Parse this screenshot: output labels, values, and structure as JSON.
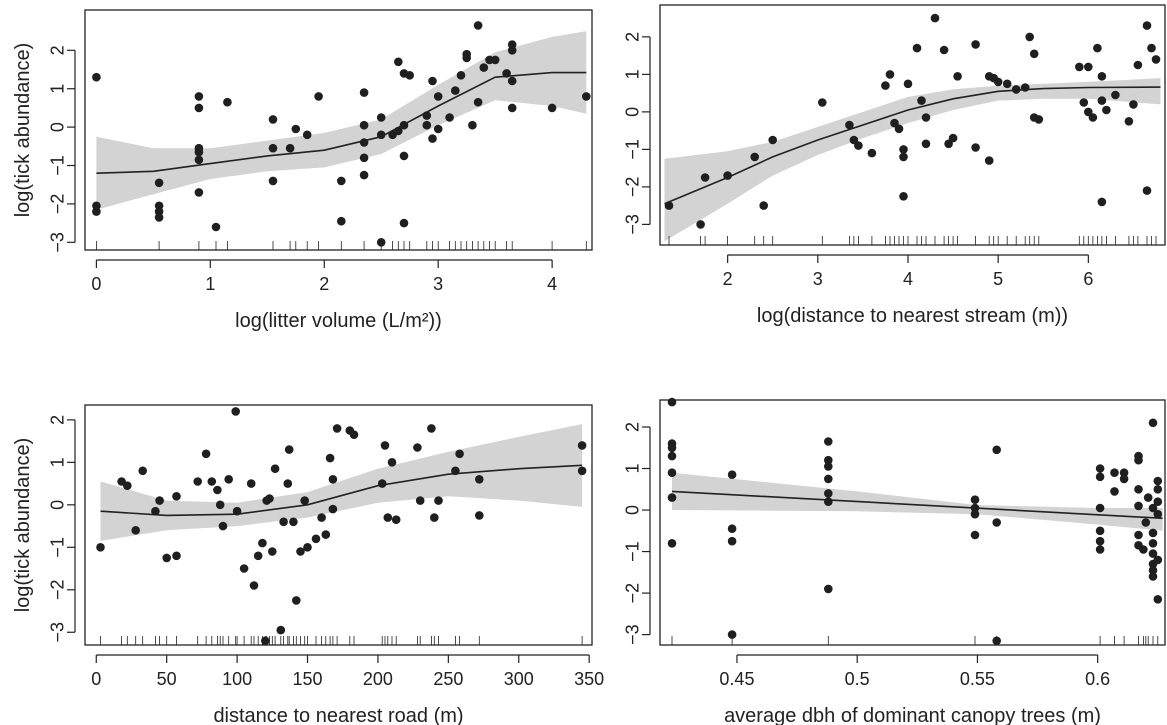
{
  "colors": {
    "band": "#d3d3d3",
    "point": "#1f1f1f",
    "line": "#222222"
  },
  "chart_data": [
    {
      "type": "scatter",
      "xlabel": "log(litter volume (L/m²))",
      "ylabel": "log(tick abundance)",
      "xlim": [
        -0.1,
        4.35
      ],
      "ylim": [
        -3.2,
        3.05
      ],
      "xticks": [
        0,
        1,
        2,
        3,
        4
      ],
      "yticks": [
        -3,
        -2,
        -1,
        0,
        1,
        2
      ],
      "points": [
        [
          0,
          1.3
        ],
        [
          0,
          -2.05
        ],
        [
          0,
          -2.2
        ],
        [
          0.55,
          -1.45
        ],
        [
          0.55,
          -2.05
        ],
        [
          0.55,
          -2.2
        ],
        [
          0.55,
          -2.35
        ],
        [
          0.9,
          0.8
        ],
        [
          0.9,
          0.5
        ],
        [
          0.9,
          -0.55
        ],
        [
          0.9,
          -0.65
        ],
        [
          0.9,
          -0.85
        ],
        [
          0.9,
          -1.7
        ],
        [
          1.05,
          -2.6
        ],
        [
          1.15,
          0.65
        ],
        [
          1.55,
          0.2
        ],
        [
          1.55,
          -0.55
        ],
        [
          1.55,
          -1.4
        ],
        [
          1.7,
          -0.55
        ],
        [
          1.75,
          -0.05
        ],
        [
          1.85,
          -0.2
        ],
        [
          1.95,
          0.8
        ],
        [
          2.15,
          -1.4
        ],
        [
          2.15,
          -2.45
        ],
        [
          2.35,
          0.9
        ],
        [
          2.35,
          0.05
        ],
        [
          2.35,
          -0.4
        ],
        [
          2.35,
          -0.8
        ],
        [
          2.35,
          -1.25
        ],
        [
          2.5,
          0.25
        ],
        [
          2.5,
          -0.2
        ],
        [
          2.5,
          -3.0
        ],
        [
          2.6,
          -0.2
        ],
        [
          2.65,
          -0.1
        ],
        [
          2.65,
          1.7
        ],
        [
          2.7,
          1.4
        ],
        [
          2.7,
          0.05
        ],
        [
          2.7,
          -0.75
        ],
        [
          2.7,
          -2.5
        ],
        [
          2.75,
          1.35
        ],
        [
          2.9,
          0.3
        ],
        [
          2.9,
          0.05
        ],
        [
          2.95,
          1.2
        ],
        [
          2.95,
          -0.3
        ],
        [
          3.0,
          0.8
        ],
        [
          3.0,
          -0.05
        ],
        [
          3.1,
          0.25
        ],
        [
          3.15,
          0.95
        ],
        [
          3.2,
          1.35
        ],
        [
          3.25,
          1.8
        ],
        [
          3.25,
          1.9
        ],
        [
          3.3,
          0.05
        ],
        [
          3.35,
          2.65
        ],
        [
          3.35,
          0.65
        ],
        [
          3.4,
          1.55
        ],
        [
          3.45,
          1.75
        ],
        [
          3.5,
          1.75
        ],
        [
          3.6,
          1.4
        ],
        [
          3.65,
          2.0
        ],
        [
          3.65,
          2.15
        ],
        [
          3.65,
          1.2
        ],
        [
          3.65,
          0.5
        ],
        [
          4.0,
          0.5
        ],
        [
          4.3,
          0.8
        ]
      ],
      "fit": [
        [
          0,
          -1.2
        ],
        [
          0.5,
          -1.15
        ],
        [
          1.0,
          -0.95
        ],
        [
          1.5,
          -0.75
        ],
        [
          2.0,
          -0.6
        ],
        [
          2.5,
          -0.25
        ],
        [
          3.0,
          0.55
        ],
        [
          3.5,
          1.3
        ],
        [
          4.0,
          1.42
        ],
        [
          4.3,
          1.42
        ]
      ],
      "band_upper": [
        [
          0,
          -0.25
        ],
        [
          0.5,
          -0.55
        ],
        [
          1.0,
          -0.55
        ],
        [
          1.5,
          -0.35
        ],
        [
          2.0,
          -0.15
        ],
        [
          2.5,
          0.2
        ],
        [
          3.0,
          1.1
        ],
        [
          3.5,
          1.95
        ],
        [
          4.0,
          2.35
        ],
        [
          4.3,
          2.5
        ]
      ],
      "band_lower": [
        [
          0,
          -2.15
        ],
        [
          0.5,
          -1.75
        ],
        [
          1.0,
          -1.35
        ],
        [
          1.5,
          -1.15
        ],
        [
          2.0,
          -1.05
        ],
        [
          2.5,
          -0.7
        ],
        [
          3.0,
          0.05
        ],
        [
          3.5,
          0.7
        ],
        [
          4.0,
          0.55
        ],
        [
          4.3,
          0.35
        ]
      ]
    },
    {
      "type": "scatter",
      "xlabel": "log(distance to nearest stream (m))",
      "ylabel": "",
      "xlim": [
        1.25,
        6.85
      ],
      "ylim": [
        -3.55,
        2.85
      ],
      "xticks": [
        2,
        3,
        4,
        5,
        6
      ],
      "yticks": [
        -3,
        -2,
        -1,
        0,
        1,
        2
      ],
      "points": [
        [
          1.35,
          -2.5
        ],
        [
          1.7,
          -3.0
        ],
        [
          1.75,
          -1.75
        ],
        [
          2.0,
          -1.7
        ],
        [
          2.3,
          -1.2
        ],
        [
          2.4,
          -2.5
        ],
        [
          2.5,
          -0.75
        ],
        [
          3.05,
          0.25
        ],
        [
          3.35,
          -0.35
        ],
        [
          3.4,
          -0.75
        ],
        [
          3.45,
          -0.9
        ],
        [
          3.6,
          -1.1
        ],
        [
          3.75,
          0.7
        ],
        [
          3.8,
          1.0
        ],
        [
          3.85,
          -0.3
        ],
        [
          3.9,
          -0.45
        ],
        [
          3.95,
          -1.0
        ],
        [
          3.95,
          -1.2
        ],
        [
          3.95,
          -2.25
        ],
        [
          4.0,
          0.75
        ],
        [
          4.1,
          1.7
        ],
        [
          4.15,
          0.3
        ],
        [
          4.2,
          -0.15
        ],
        [
          4.2,
          -0.85
        ],
        [
          4.3,
          2.5
        ],
        [
          4.4,
          1.65
        ],
        [
          4.45,
          -0.85
        ],
        [
          4.5,
          -0.7
        ],
        [
          4.55,
          0.95
        ],
        [
          4.75,
          1.8
        ],
        [
          4.75,
          -0.95
        ],
        [
          4.9,
          0.95
        ],
        [
          4.9,
          -1.3
        ],
        [
          4.95,
          0.9
        ],
        [
          5.0,
          0.8
        ],
        [
          5.1,
          0.75
        ],
        [
          5.2,
          0.6
        ],
        [
          5.3,
          0.65
        ],
        [
          5.35,
          2.0
        ],
        [
          5.4,
          1.55
        ],
        [
          5.4,
          -0.15
        ],
        [
          5.45,
          -0.2
        ],
        [
          5.9,
          1.2
        ],
        [
          5.95,
          0.25
        ],
        [
          6.0,
          1.2
        ],
        [
          6.0,
          0.0
        ],
        [
          6.05,
          -0.15
        ],
        [
          6.1,
          1.7
        ],
        [
          6.15,
          0.95
        ],
        [
          6.15,
          0.3
        ],
        [
          6.15,
          -2.4
        ],
        [
          6.2,
          0.05
        ],
        [
          6.3,
          0.45
        ],
        [
          6.45,
          -0.25
        ],
        [
          6.5,
          0.2
        ],
        [
          6.55,
          1.25
        ],
        [
          6.65,
          2.3
        ],
        [
          6.65,
          -2.1
        ],
        [
          6.7,
          1.7
        ],
        [
          6.75,
          1.4
        ]
      ],
      "fit": [
        [
          1.3,
          -2.45
        ],
        [
          2.0,
          -1.75
        ],
        [
          2.5,
          -1.2
        ],
        [
          3.0,
          -0.75
        ],
        [
          3.5,
          -0.35
        ],
        [
          4.0,
          0.05
        ],
        [
          4.5,
          0.35
        ],
        [
          5.0,
          0.55
        ],
        [
          5.5,
          0.62
        ],
        [
          6.0,
          0.65
        ],
        [
          6.8,
          0.66
        ]
      ],
      "band_upper": [
        [
          1.3,
          -1.25
        ],
        [
          2.0,
          -1.05
        ],
        [
          2.5,
          -0.8
        ],
        [
          3.0,
          -0.4
        ],
        [
          3.5,
          0.0
        ],
        [
          4.0,
          0.4
        ],
        [
          4.5,
          0.6
        ],
        [
          5.0,
          0.7
        ],
        [
          5.5,
          0.75
        ],
        [
          6.0,
          0.8
        ],
        [
          6.8,
          0.9
        ]
      ],
      "band_lower": [
        [
          1.3,
          -3.45
        ],
        [
          2.0,
          -2.45
        ],
        [
          2.5,
          -1.7
        ],
        [
          3.0,
          -1.15
        ],
        [
          3.5,
          -0.7
        ],
        [
          4.0,
          -0.3
        ],
        [
          4.5,
          0.05
        ],
        [
          5.0,
          0.3
        ],
        [
          5.5,
          0.35
        ],
        [
          6.0,
          0.35
        ],
        [
          6.8,
          0.2
        ]
      ]
    },
    {
      "type": "scatter",
      "xlabel": "distance to nearest road (m)",
      "ylabel": "log(tick abundance)",
      "xlim": [
        -8,
        352
      ],
      "ylim": [
        -3.3,
        2.35
      ],
      "xticks": [
        0,
        50,
        100,
        150,
        200,
        250,
        300,
        350
      ],
      "yticks": [
        -3,
        -2,
        -1,
        0,
        1,
        2
      ],
      "points": [
        [
          3,
          -1.0
        ],
        [
          18,
          0.55
        ],
        [
          22,
          0.45
        ],
        [
          28,
          -0.6
        ],
        [
          33,
          0.8
        ],
        [
          42,
          -0.15
        ],
        [
          45,
          0.1
        ],
        [
          50,
          -1.25
        ],
        [
          57,
          0.2
        ],
        [
          57,
          -1.2
        ],
        [
          72,
          0.55
        ],
        [
          78,
          1.2
        ],
        [
          82,
          0.55
        ],
        [
          86,
          0.35
        ],
        [
          88,
          0.0
        ],
        [
          90,
          -0.5
        ],
        [
          94,
          0.6
        ],
        [
          99,
          2.2
        ],
        [
          100,
          -0.15
        ],
        [
          105,
          -1.5
        ],
        [
          110,
          0.5
        ],
        [
          112,
          -1.9
        ],
        [
          115,
          -1.2
        ],
        [
          118,
          -0.9
        ],
        [
          120,
          -3.2
        ],
        [
          121,
          0.1
        ],
        [
          123,
          0.15
        ],
        [
          125,
          -1.1
        ],
        [
          127,
          0.85
        ],
        [
          131,
          -2.95
        ],
        [
          133,
          -0.4
        ],
        [
          136,
          0.5
        ],
        [
          137,
          1.3
        ],
        [
          140,
          -0.4
        ],
        [
          142,
          -2.25
        ],
        [
          145,
          -1.1
        ],
        [
          148,
          0.1
        ],
        [
          150,
          -1.0
        ],
        [
          156,
          -0.8
        ],
        [
          160,
          -0.3
        ],
        [
          163,
          -0.7
        ],
        [
          166,
          1.1
        ],
        [
          168,
          -0.1
        ],
        [
          168,
          0.6
        ],
        [
          171,
          1.8
        ],
        [
          180,
          1.75
        ],
        [
          183,
          1.65
        ],
        [
          203,
          0.5
        ],
        [
          205,
          1.4
        ],
        [
          207,
          -0.3
        ],
        [
          210,
          1.0
        ],
        [
          213,
          -0.35
        ],
        [
          228,
          1.35
        ],
        [
          230,
          0.1
        ],
        [
          238,
          1.8
        ],
        [
          240,
          -0.3
        ],
        [
          243,
          0.1
        ],
        [
          255,
          0.8
        ],
        [
          258,
          1.2
        ],
        [
          272,
          0.6
        ],
        [
          272,
          -0.25
        ],
        [
          345,
          1.4
        ],
        [
          345,
          0.8
        ]
      ],
      "fit": [
        [
          3,
          -0.15
        ],
        [
          50,
          -0.25
        ],
        [
          100,
          -0.22
        ],
        [
          150,
          0.0
        ],
        [
          200,
          0.45
        ],
        [
          250,
          0.72
        ],
        [
          300,
          0.85
        ],
        [
          345,
          0.93
        ]
      ],
      "band_upper": [
        [
          3,
          0.55
        ],
        [
          50,
          0.1
        ],
        [
          100,
          0.05
        ],
        [
          150,
          0.3
        ],
        [
          200,
          0.85
        ],
        [
          250,
          1.25
        ],
        [
          300,
          1.6
        ],
        [
          345,
          1.9
        ]
      ],
      "band_lower": [
        [
          3,
          -0.85
        ],
        [
          50,
          -0.6
        ],
        [
          100,
          -0.5
        ],
        [
          150,
          -0.3
        ],
        [
          200,
          0.05
        ],
        [
          250,
          0.2
        ],
        [
          300,
          0.1
        ],
        [
          345,
          -0.05
        ]
      ]
    },
    {
      "type": "scatter",
      "xlabel": "average dbh of dominant canopy trees (m)",
      "ylabel": "",
      "xlim": [
        0.418,
        0.628
      ],
      "ylim": [
        -3.25,
        2.65
      ],
      "xticks": [
        0.45,
        0.5,
        0.55,
        0.6
      ],
      "yticks": [
        -3,
        -2,
        -1,
        0,
        1,
        2
      ],
      "points": [
        [
          0.423,
          2.6
        ],
        [
          0.423,
          1.6
        ],
        [
          0.423,
          1.5
        ],
        [
          0.423,
          1.3
        ],
        [
          0.423,
          0.9
        ],
        [
          0.423,
          0.3
        ],
        [
          0.423,
          -0.8
        ],
        [
          0.448,
          0.85
        ],
        [
          0.448,
          -0.45
        ],
        [
          0.448,
          -0.75
        ],
        [
          0.448,
          -3.0
        ],
        [
          0.488,
          1.65
        ],
        [
          0.488,
          1.2
        ],
        [
          0.488,
          1.05
        ],
        [
          0.488,
          0.75
        ],
        [
          0.488,
          0.4
        ],
        [
          0.488,
          0.2
        ],
        [
          0.488,
          -1.9
        ],
        [
          0.549,
          0.25
        ],
        [
          0.549,
          0.05
        ],
        [
          0.549,
          -0.1
        ],
        [
          0.549,
          -0.6
        ],
        [
          0.558,
          1.45
        ],
        [
          0.558,
          -0.3
        ],
        [
          0.558,
          -3.15
        ],
        [
          0.601,
          1.0
        ],
        [
          0.601,
          0.8
        ],
        [
          0.601,
          0.05
        ],
        [
          0.601,
          -0.5
        ],
        [
          0.601,
          -0.75
        ],
        [
          0.601,
          -0.95
        ],
        [
          0.607,
          0.9
        ],
        [
          0.607,
          0.45
        ],
        [
          0.611,
          0.9
        ],
        [
          0.611,
          0.75
        ],
        [
          0.617,
          1.3
        ],
        [
          0.617,
          1.2
        ],
        [
          0.617,
          0.5
        ],
        [
          0.617,
          0.1
        ],
        [
          0.617,
          -0.6
        ],
        [
          0.617,
          -0.85
        ],
        [
          0.619,
          -0.95
        ],
        [
          0.62,
          -0.3
        ],
        [
          0.621,
          0.3
        ],
        [
          0.623,
          2.1
        ],
        [
          0.623,
          0.05
        ],
        [
          0.623,
          -0.55
        ],
        [
          0.623,
          -0.8
        ],
        [
          0.623,
          -1.05
        ],
        [
          0.623,
          -1.3
        ],
        [
          0.623,
          -1.45
        ],
        [
          0.623,
          -1.6
        ],
        [
          0.625,
          0.7
        ],
        [
          0.625,
          0.5
        ],
        [
          0.625,
          0.2
        ],
        [
          0.625,
          -0.1
        ],
        [
          0.625,
          -1.2
        ],
        [
          0.625,
          -2.15
        ]
      ],
      "fit": [
        [
          0.423,
          0.45
        ],
        [
          0.627,
          -0.2
        ]
      ],
      "band_upper": [
        [
          0.423,
          0.9
        ],
        [
          0.5,
          0.45
        ],
        [
          0.55,
          0.12
        ],
        [
          0.6,
          0.05
        ],
        [
          0.627,
          0.05
        ]
      ],
      "band_lower": [
        [
          0.423,
          0.0
        ],
        [
          0.5,
          -0.03
        ],
        [
          0.55,
          -0.1
        ],
        [
          0.6,
          -0.35
        ],
        [
          0.627,
          -0.5
        ]
      ]
    }
  ]
}
